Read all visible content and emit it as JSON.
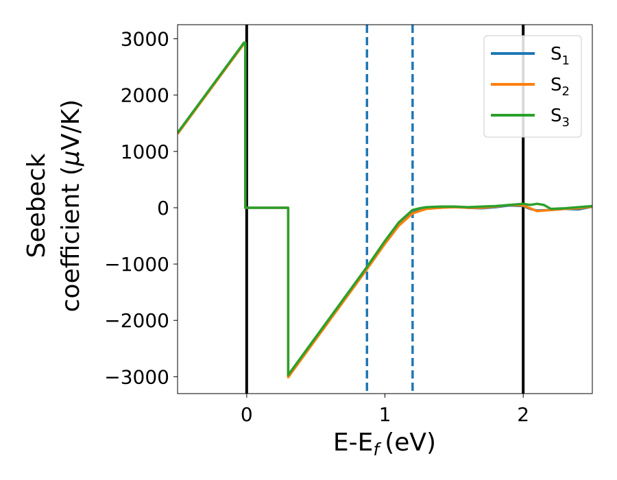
{
  "chart_data": {
    "type": "line",
    "xlabel": "E-E",
    "xlabel_sub": "f",
    "xlabel_unit": "(eV)",
    "ylabel_line1": "Seebeck",
    "ylabel_line2_prefix": "coefficient  (",
    "ylabel_mu": "μ",
    "ylabel_line2_suffix": "V/K)",
    "xlim": [
      -0.5,
      2.5
    ],
    "ylim": [
      -3300,
      3250
    ],
    "x_ticks": [
      0,
      1,
      2
    ],
    "x_tick_labels": [
      "0",
      "1",
      "2"
    ],
    "y_ticks": [
      -3000,
      -2000,
      -1000,
      0,
      1000,
      2000,
      3000
    ],
    "y_tick_labels": [
      "−3000",
      "−2000",
      "−1000",
      "0",
      "1000",
      "2000",
      "3000"
    ],
    "grid": false,
    "legend_position": "top-right",
    "vertical_lines": [
      {
        "x": 0.0,
        "style": "solid",
        "color": "#000000"
      },
      {
        "x": 2.0,
        "style": "solid",
        "color": "#000000"
      },
      {
        "x": 0.87,
        "style": "dashed",
        "color": "#1f77b4"
      },
      {
        "x": 1.2,
        "style": "dashed",
        "color": "#1f77b4"
      }
    ],
    "series": [
      {
        "name": "S",
        "sub": "1",
        "color": "#1f77b4",
        "points": [
          [
            -0.5,
            1320
          ],
          [
            -0.02,
            2920
          ],
          [
            -0.01,
            2920
          ],
          [
            -0.01,
            0
          ],
          [
            0.3,
            0
          ],
          [
            0.3,
            -2990
          ],
          [
            0.87,
            -1070
          ],
          [
            1.0,
            -620
          ],
          [
            1.1,
            -300
          ],
          [
            1.2,
            -80
          ],
          [
            1.3,
            -10
          ],
          [
            1.4,
            0
          ],
          [
            1.5,
            20
          ],
          [
            1.6,
            0
          ],
          [
            1.7,
            -10
          ],
          [
            1.8,
            10
          ],
          [
            1.9,
            40
          ],
          [
            2.0,
            30
          ],
          [
            2.05,
            -20
          ],
          [
            2.1,
            -50
          ],
          [
            2.2,
            -40
          ],
          [
            2.3,
            -20
          ],
          [
            2.4,
            -30
          ],
          [
            2.5,
            20
          ]
        ]
      },
      {
        "name": "S",
        "sub": "2",
        "color": "#ff7f0e",
        "points": [
          [
            -0.5,
            1310
          ],
          [
            -0.02,
            2910
          ],
          [
            -0.01,
            2910
          ],
          [
            -0.01,
            0
          ],
          [
            0.3,
            0
          ],
          [
            0.3,
            -3010
          ],
          [
            0.87,
            -1090
          ],
          [
            1.0,
            -640
          ],
          [
            1.1,
            -320
          ],
          [
            1.2,
            -100
          ],
          [
            1.3,
            -20
          ],
          [
            1.4,
            0
          ],
          [
            1.5,
            10
          ],
          [
            1.6,
            0
          ],
          [
            1.7,
            0
          ],
          [
            1.8,
            20
          ],
          [
            1.9,
            50
          ],
          [
            2.0,
            40
          ],
          [
            2.05,
            -10
          ],
          [
            2.1,
            -60
          ],
          [
            2.2,
            -40
          ],
          [
            2.3,
            -20
          ],
          [
            2.4,
            -10
          ],
          [
            2.5,
            20
          ]
        ]
      },
      {
        "name": "S",
        "sub": "3",
        "color": "#2ca02c",
        "points": [
          [
            -0.5,
            1330
          ],
          [
            -0.02,
            2930
          ],
          [
            -0.01,
            2930
          ],
          [
            -0.01,
            0
          ],
          [
            0.3,
            0
          ],
          [
            0.3,
            -2970
          ],
          [
            0.87,
            -1050
          ],
          [
            1.0,
            -590
          ],
          [
            1.1,
            -260
          ],
          [
            1.2,
            -40
          ],
          [
            1.25,
            -10
          ],
          [
            1.3,
            10
          ],
          [
            1.4,
            20
          ],
          [
            1.5,
            20
          ],
          [
            1.6,
            10
          ],
          [
            1.7,
            20
          ],
          [
            1.8,
            30
          ],
          [
            1.9,
            50
          ],
          [
            2.0,
            70
          ],
          [
            2.05,
            50
          ],
          [
            2.1,
            70
          ],
          [
            2.15,
            50
          ],
          [
            2.2,
            -20
          ],
          [
            2.3,
            -10
          ],
          [
            2.4,
            10
          ],
          [
            2.5,
            30
          ]
        ]
      }
    ]
  }
}
